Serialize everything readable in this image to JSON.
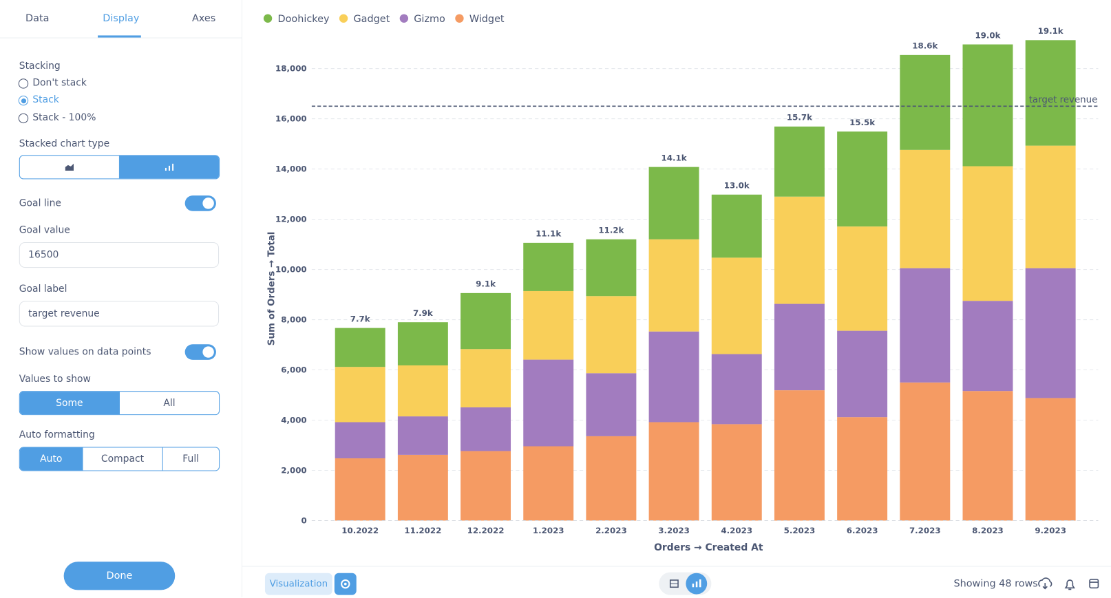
{
  "sidebar": {
    "tabs": [
      "Data",
      "Display",
      "Axes"
    ],
    "stacking_label": "Stacking",
    "stacking_options": [
      "Don't stack",
      "Stack",
      "Stack - 100%"
    ],
    "stacked_chart_type_label": "Stacked chart type",
    "goal_line_label": "Goal line",
    "goal_value_label": "Goal value",
    "goal_label_label": "Goal label",
    "show_values_label": "Show values on data points",
    "values_to_show_label": "Values to show",
    "values_to_show_options": [
      "Some",
      "All"
    ],
    "auto_formatting_label": "Auto formatting",
    "auto_formatting_options": [
      "Auto",
      "Compact",
      "Full"
    ],
    "done_button": "Done"
  },
  "footer": {
    "visualization_button": "Visualization",
    "row_count": "Showing 48 rows"
  },
  "chart_data": {
    "type": "stacked-bar",
    "x_label": "Orders → Created At",
    "y_label": "Sum of Orders → Total",
    "categories": [
      "10.2022",
      "11.2022",
      "12.2022",
      "1.2023",
      "2.2023",
      "3.2023",
      "4.2023",
      "5.2023",
      "6.2023",
      "7.2023",
      "8.2023",
      "9.2023"
    ],
    "series": [
      {
        "name": "Doohickey",
        "color": "#7cb94a",
        "values": [
          1550,
          1720,
          2230,
          1920,
          2260,
          2880,
          2510,
          2790,
          3780,
          3780,
          4850,
          4200
        ]
      },
      {
        "name": "Gadget",
        "color": "#f9cf59",
        "values": [
          2200,
          2030,
          2320,
          2730,
          3070,
          3670,
          3840,
          4270,
          4150,
          4710,
          5360,
          4880
        ]
      },
      {
        "name": "Gizmo",
        "color": "#a27cbf",
        "values": [
          1440,
          1530,
          1740,
          3450,
          2510,
          3610,
          2790,
          3440,
          3440,
          4550,
          3590,
          5170
        ]
      },
      {
        "name": "Widget",
        "color": "#f59b63",
        "values": [
          2480,
          2620,
          2770,
          2960,
          3360,
          3920,
          3840,
          5190,
          4120,
          5500,
          5160,
          4880
        ]
      }
    ],
    "total_labels": [
      "7.7k",
      "7.9k",
      "9.1k",
      "11.1k",
      "11.2k",
      "14.1k",
      "13.0k",
      "15.7k",
      "15.5k",
      "18.6k",
      "19.0k",
      "19.1k"
    ],
    "goal": {
      "value": 16500,
      "label": "target revenue"
    },
    "ylim": [
      0,
      19600
    ],
    "yticks": [
      0,
      {
        "value": 2000,
        "label": "2,000"
      },
      {
        "value": 4000,
        "label": "4,000"
      },
      {
        "value": 6000,
        "label": "6,000"
      },
      {
        "value": 8000,
        "label": "8,000"
      },
      {
        "value": 10000,
        "label": "10,000"
      },
      {
        "value": 12000,
        "label": "12,000"
      },
      {
        "value": 14000,
        "label": "14,000"
      },
      {
        "value": 16000,
        "label": "16,000"
      },
      {
        "value": 18000,
        "label": "18,000"
      }
    ],
    "grid": true
  }
}
